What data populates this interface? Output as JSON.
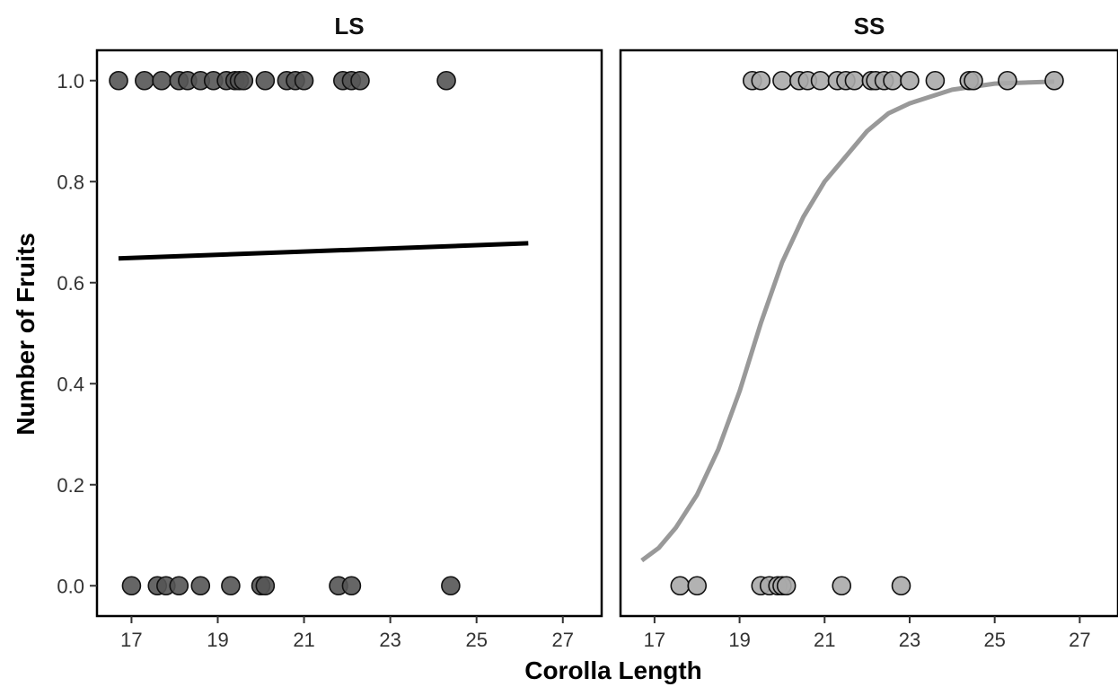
{
  "chart_data": {
    "type": "scatter",
    "xlabel": "Corolla Length",
    "ylabel": "Number of Fruits",
    "x_ticks": [
      17,
      19,
      21,
      23,
      25,
      27
    ],
    "y_ticks": [
      "0.0",
      "0.2",
      "0.4",
      "0.6",
      "0.8",
      "1.0"
    ],
    "xlim": [
      16.2,
      27.9
    ],
    "ylim": [
      -0.06,
      1.06
    ],
    "panels": [
      {
        "title": "LS",
        "point_color": "#555555",
        "line_color": "#000000",
        "points": [
          {
            "x": 16.7,
            "y": 1
          },
          {
            "x": 17.3,
            "y": 1
          },
          {
            "x": 17.7,
            "y": 1
          },
          {
            "x": 18.1,
            "y": 1
          },
          {
            "x": 18.3,
            "y": 1
          },
          {
            "x": 18.6,
            "y": 1
          },
          {
            "x": 18.9,
            "y": 1
          },
          {
            "x": 19.2,
            "y": 1
          },
          {
            "x": 19.4,
            "y": 1
          },
          {
            "x": 19.5,
            "y": 1
          },
          {
            "x": 19.6,
            "y": 1
          },
          {
            "x": 20.1,
            "y": 1
          },
          {
            "x": 20.6,
            "y": 1
          },
          {
            "x": 20.8,
            "y": 1
          },
          {
            "x": 21.0,
            "y": 1
          },
          {
            "x": 21.9,
            "y": 1
          },
          {
            "x": 22.1,
            "y": 1
          },
          {
            "x": 22.3,
            "y": 1
          },
          {
            "x": 24.3,
            "y": 1
          },
          {
            "x": 17.0,
            "y": 0
          },
          {
            "x": 17.6,
            "y": 0
          },
          {
            "x": 17.8,
            "y": 0
          },
          {
            "x": 18.1,
            "y": 0
          },
          {
            "x": 18.6,
            "y": 0
          },
          {
            "x": 19.3,
            "y": 0
          },
          {
            "x": 20.0,
            "y": 0
          },
          {
            "x": 20.1,
            "y": 0
          },
          {
            "x": 21.8,
            "y": 0
          },
          {
            "x": 22.1,
            "y": 0
          },
          {
            "x": 24.4,
            "y": 0
          }
        ],
        "fit": [
          {
            "x": 16.7,
            "y": 0.648
          },
          {
            "x": 26.2,
            "y": 0.678
          }
        ]
      },
      {
        "title": "SS",
        "point_color": "#aaaaaa",
        "line_color": "#999999",
        "points": [
          {
            "x": 19.3,
            "y": 1
          },
          {
            "x": 19.5,
            "y": 1
          },
          {
            "x": 20.0,
            "y": 1
          },
          {
            "x": 20.4,
            "y": 1
          },
          {
            "x": 20.6,
            "y": 1
          },
          {
            "x": 20.9,
            "y": 1
          },
          {
            "x": 21.3,
            "y": 1
          },
          {
            "x": 21.5,
            "y": 1
          },
          {
            "x": 21.7,
            "y": 1
          },
          {
            "x": 22.1,
            "y": 1
          },
          {
            "x": 22.2,
            "y": 1
          },
          {
            "x": 22.4,
            "y": 1
          },
          {
            "x": 22.6,
            "y": 1
          },
          {
            "x": 23.0,
            "y": 1
          },
          {
            "x": 23.6,
            "y": 1
          },
          {
            "x": 24.4,
            "y": 1
          },
          {
            "x": 24.5,
            "y": 1
          },
          {
            "x": 25.3,
            "y": 1
          },
          {
            "x": 26.4,
            "y": 1
          },
          {
            "x": 17.6,
            "y": 0
          },
          {
            "x": 18.0,
            "y": 0
          },
          {
            "x": 19.5,
            "y": 0
          },
          {
            "x": 19.7,
            "y": 0
          },
          {
            "x": 19.9,
            "y": 0
          },
          {
            "x": 20.0,
            "y": 0
          },
          {
            "x": 20.1,
            "y": 0
          },
          {
            "x": 21.4,
            "y": 0
          },
          {
            "x": 22.8,
            "y": 0
          }
        ],
        "fit": [
          {
            "x": 16.7,
            "y": 0.05
          },
          {
            "x": 17.1,
            "y": 0.075
          },
          {
            "x": 17.5,
            "y": 0.115
          },
          {
            "x": 18.0,
            "y": 0.18
          },
          {
            "x": 18.5,
            "y": 0.27
          },
          {
            "x": 19.0,
            "y": 0.385
          },
          {
            "x": 19.5,
            "y": 0.52
          },
          {
            "x": 20.0,
            "y": 0.64
          },
          {
            "x": 20.5,
            "y": 0.73
          },
          {
            "x": 21.0,
            "y": 0.8
          },
          {
            "x": 21.5,
            "y": 0.85
          },
          {
            "x": 22.0,
            "y": 0.9
          },
          {
            "x": 22.5,
            "y": 0.935
          },
          {
            "x": 23.0,
            "y": 0.955
          },
          {
            "x": 24.0,
            "y": 0.982
          },
          {
            "x": 25.0,
            "y": 0.994
          },
          {
            "x": 26.4,
            "y": 0.998
          }
        ]
      }
    ]
  }
}
